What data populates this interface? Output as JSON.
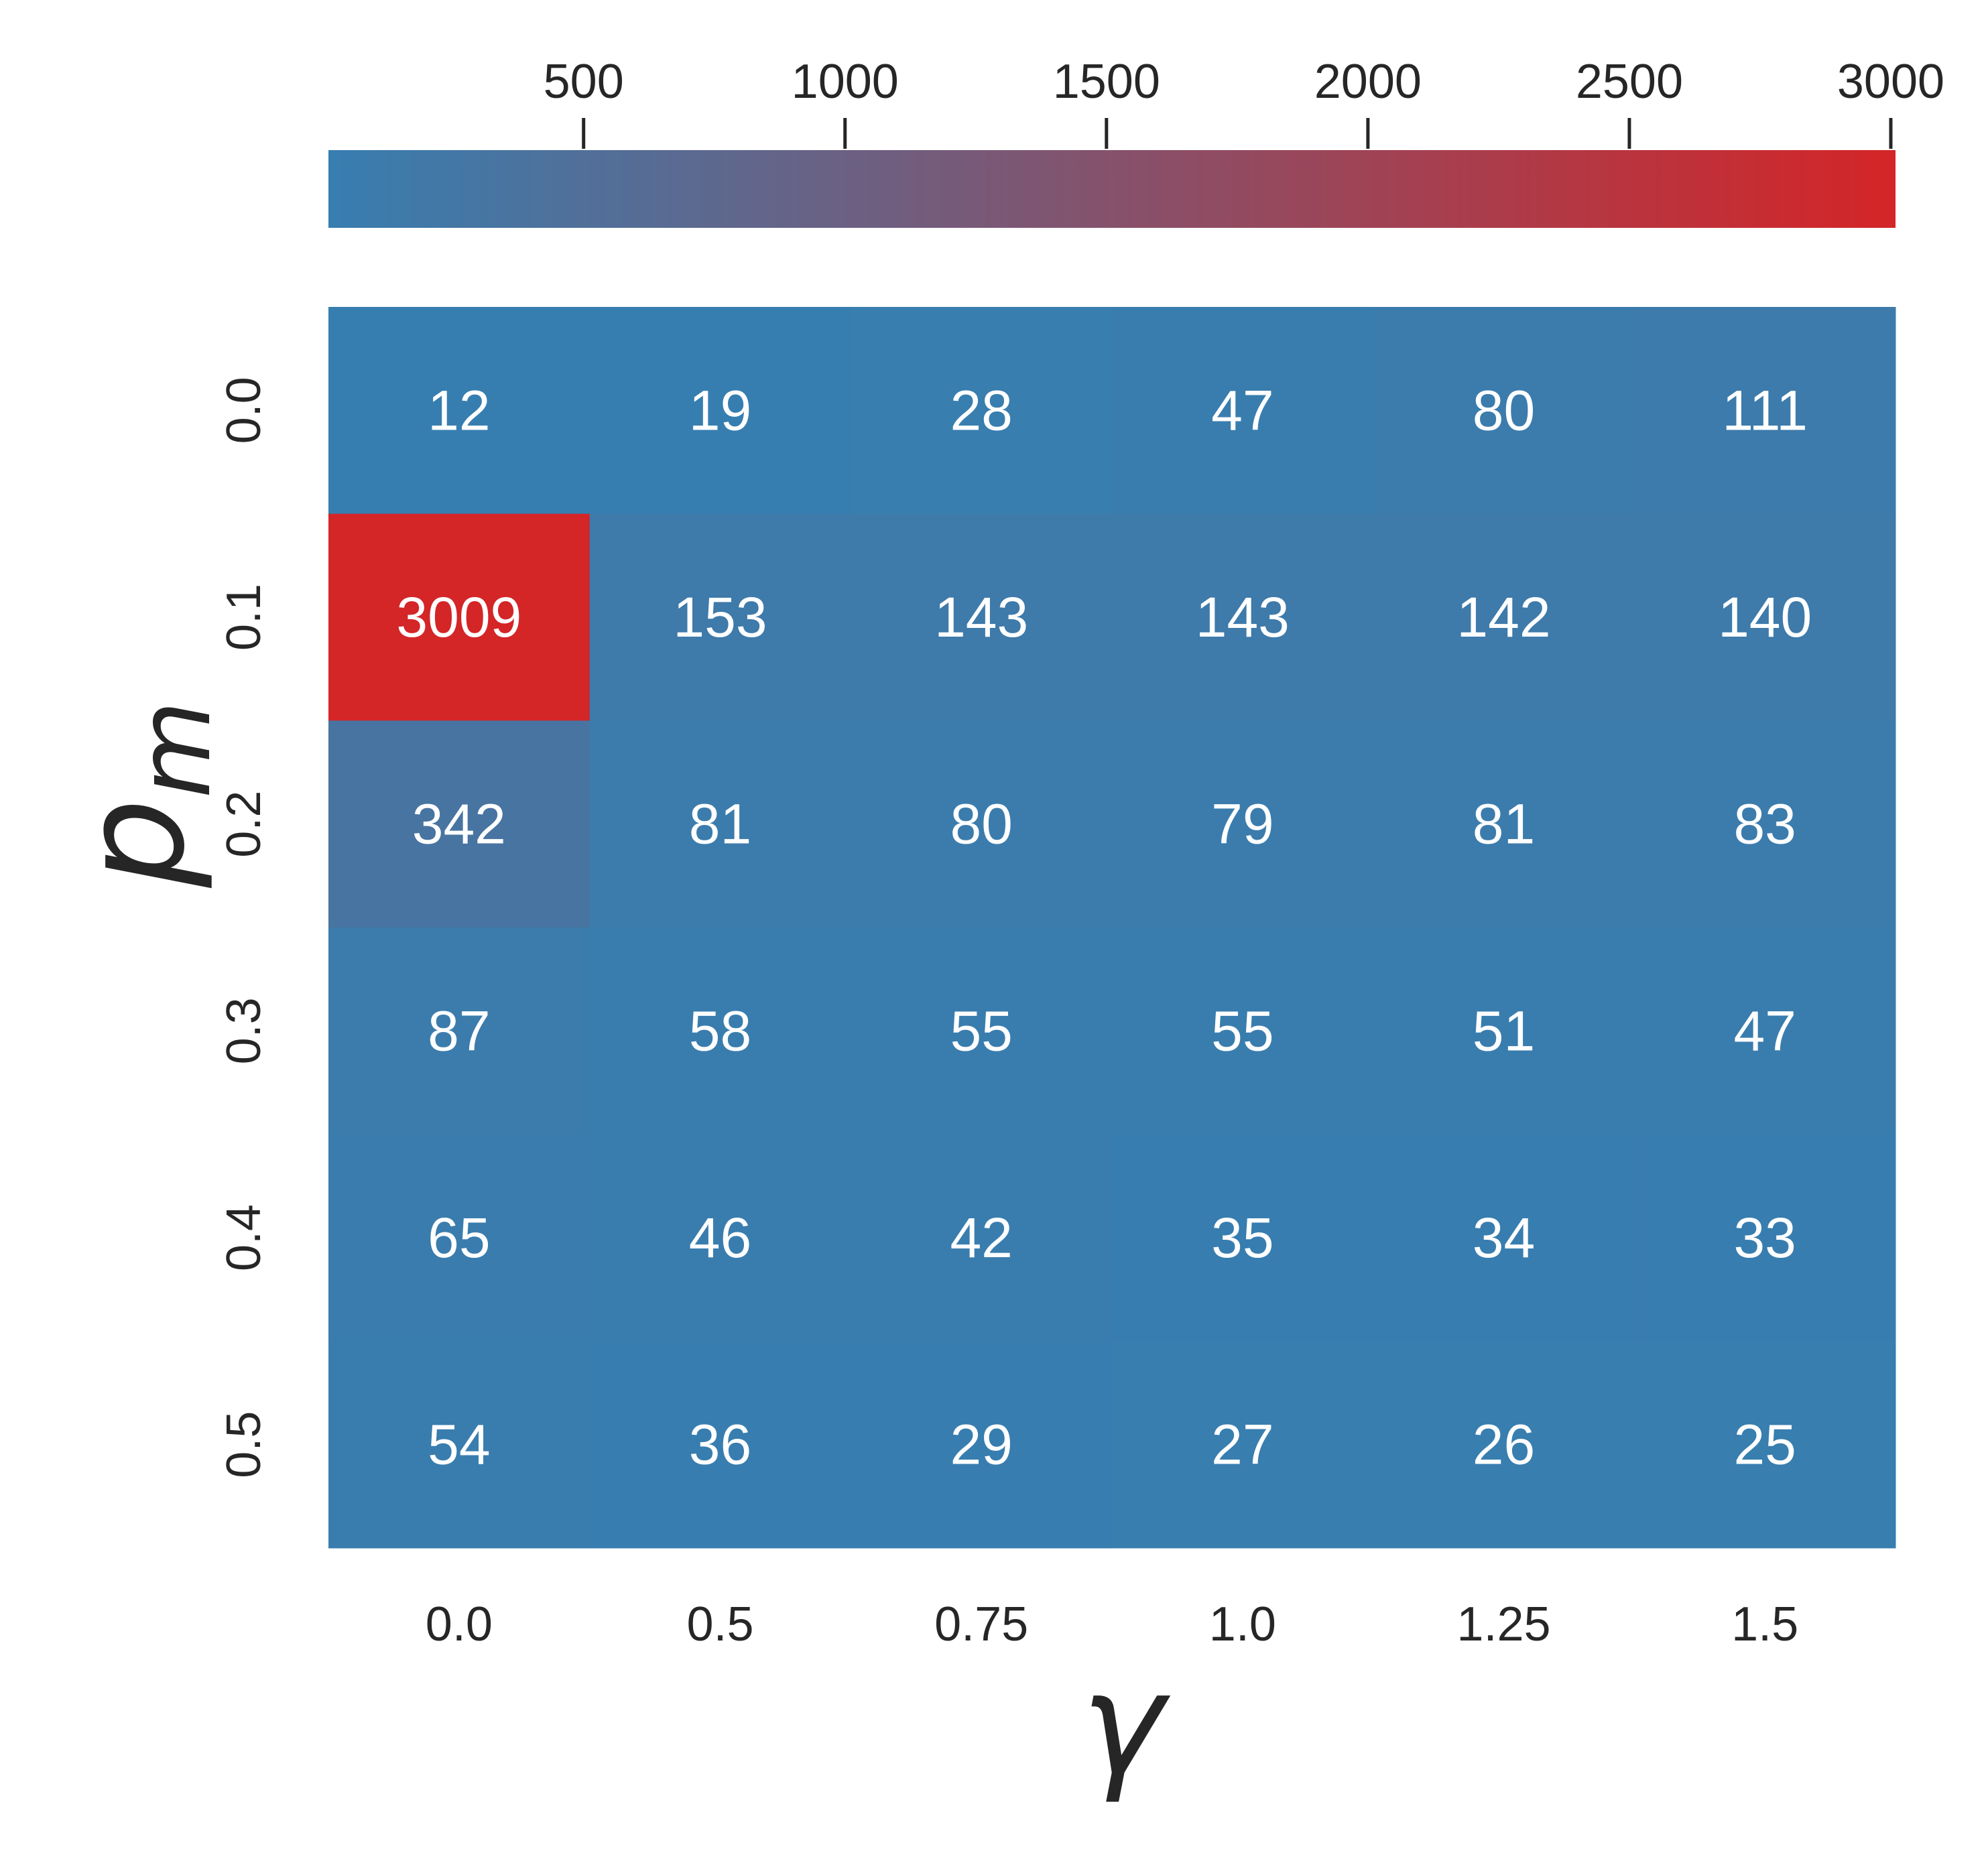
{
  "chart_data": {
    "type": "heatmap",
    "xlabel": "γ",
    "ylabel_base": "p",
    "ylabel_sub": "m",
    "x_categories": [
      "0.0",
      "0.5",
      "0.75",
      "1.0",
      "1.25",
      "1.5"
    ],
    "y_categories": [
      "0.0",
      "0.1",
      "0.2",
      "0.3",
      "0.4",
      "0.5"
    ],
    "values": [
      [
        12,
        19,
        28,
        47,
        80,
        111
      ],
      [
        3009,
        153,
        143,
        143,
        142,
        140
      ],
      [
        342,
        81,
        80,
        79,
        81,
        83
      ],
      [
        87,
        58,
        55,
        55,
        51,
        47
      ],
      [
        65,
        46,
        42,
        35,
        34,
        33
      ],
      [
        54,
        36,
        29,
        27,
        26,
        25
      ]
    ],
    "annotations": "cell values shown in white",
    "colorbar": {
      "position": "top",
      "orientation": "horizontal",
      "range": [
        12,
        3009
      ],
      "ticks": [
        500,
        1000,
        1500,
        2000,
        2500,
        3000
      ],
      "colors": {
        "low": "#377eb0",
        "high": "#d42527"
      }
    },
    "grid": false
  }
}
